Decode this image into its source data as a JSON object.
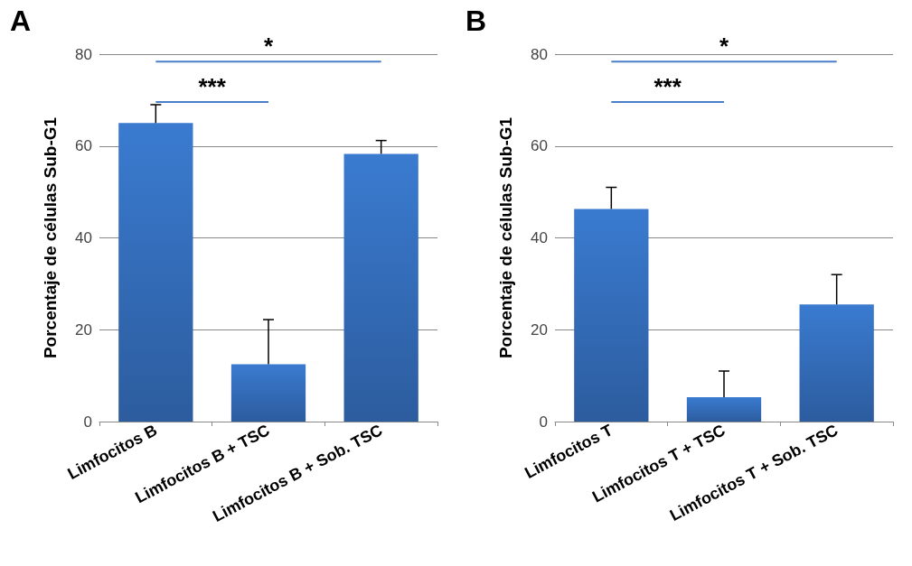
{
  "chart_data": [
    {
      "type": "bar",
      "title": "A",
      "ylabel": "Porcentaje de células Sub-G1",
      "categories": [
        "Limfocitos B",
        "Limfocitos B + TSC",
        "Limfocitos B + Sob. TSC"
      ],
      "values": [
        65,
        12.5,
        58.3
      ],
      "errors": [
        [
          65,
          69
        ],
        [
          12.5,
          22.2
        ],
        [
          58.3,
          61.2
        ]
      ],
      "color": "#3a7bd0",
      "ylim": [
        0,
        80
      ],
      "yticks": [
        0,
        20,
        40,
        60,
        80
      ],
      "grid": "y",
      "annotations": [
        "*",
        "***"
      ]
    },
    {
      "type": "bar",
      "title": "B",
      "ylabel": "Porcentaje de células Sub-G1",
      "categories": [
        "Limfocitos T",
        "Limfocitos T + TSC",
        "Limfocitos T + Sob. TSC"
      ],
      "values": [
        46.3,
        5.3,
        25.5
      ],
      "errors": [
        [
          46.3,
          51
        ],
        [
          5.3,
          11
        ],
        [
          25.5,
          32
        ]
      ],
      "color": "#3a7bd0",
      "ylim": [
        0,
        80
      ],
      "yticks": [
        0,
        20,
        40,
        60,
        80
      ],
      "grid": "y",
      "annotations": [
        "*",
        "***"
      ]
    }
  ]
}
